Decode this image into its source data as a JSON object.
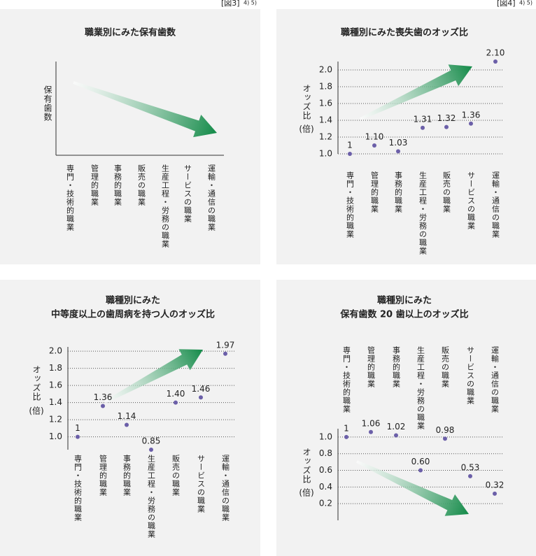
{
  "captions": [
    {
      "label": "[図3]",
      "ref": "4) 5)"
    },
    {
      "label": "[図4]",
      "ref": "4) 5)"
    }
  ],
  "chart_data": [
    {
      "type": "arrow",
      "title": [
        "職業別にみた保有歯数"
      ],
      "ylabel": "保有歯数",
      "categories": [
        "専門・技術的職業",
        "管理的職業",
        "事務的職業",
        "販売の職業",
        "生産工程・労務の職業",
        "サービスの職業",
        "運輸・通信の職業"
      ]
    },
    {
      "type": "scatter",
      "title": [
        "職種別にみた喪失歯のオッズ比"
      ],
      "ylabel": "オッズ比",
      "ylabel_unit": "(倍)",
      "categories": [
        "専門・技術的職業",
        "管理的職業",
        "事務的職業",
        "生産工程・労務の職業",
        "販売の職業",
        "サービスの職業",
        "運輸・通信の職業"
      ],
      "values": [
        1,
        1.1,
        1.03,
        1.31,
        1.32,
        1.36,
        2.1
      ],
      "value_labels": [
        "1",
        "1.10",
        "1.03",
        "1.31",
        "1.32",
        "1.36",
        "2.10"
      ],
      "color": "#6b5fa8",
      "ylim": [
        1.0,
        2.1
      ],
      "yticks": [
        {
          "value": 1.0,
          "label": "1.0"
        },
        1.2,
        1.4,
        1.6,
        1.8,
        {
          "value": 2.0,
          "label": "2.0"
        }
      ],
      "grid": true,
      "trend": "up"
    },
    {
      "type": "scatter",
      "title": [
        "職種別にみた",
        "中等度以上の歯周病を持つ人のオッズ比"
      ],
      "ylabel": "オッズ比",
      "ylabel_unit": "(倍)",
      "categories": [
        "専門・技術的職業",
        "管理的職業",
        "事務的職業",
        "生産工程・労務の職業",
        "販売の職業",
        "サービスの職業",
        "運輸・通信の職業"
      ],
      "values": [
        1,
        1.36,
        1.14,
        0.85,
        1.4,
        1.46,
        1.97
      ],
      "value_labels": [
        "1",
        "1.36",
        "1.14",
        "0.85",
        "1.40",
        "1.46",
        "1.97"
      ],
      "color": "#6b5fa8",
      "ylim": [
        0.85,
        2.05
      ],
      "yticks": [
        {
          "value": 1.0,
          "label": "1.0"
        },
        1.2,
        1.4,
        1.6,
        1.8,
        {
          "value": 2.0,
          "label": "2.0"
        }
      ],
      "grid": true,
      "trend": "up"
    },
    {
      "type": "scatter",
      "title": [
        "職種別にみた",
        "保有歯数 20 歯以上のオッズ比"
      ],
      "ylabel": "オッズ比",
      "ylabel_unit": "(倍)",
      "categories": [
        "専門・技術的職業",
        "管理的職業",
        "事務的職業",
        "生産工程・労務の職業",
        "販売の職業",
        "サービスの職業",
        "運輸・通信の職業"
      ],
      "values": [
        1,
        1.06,
        1.02,
        0.6,
        0.98,
        0.53,
        0.32
      ],
      "value_labels": [
        "1",
        "1.06",
        "1.02",
        "0.60",
        "0.98",
        "0.53",
        "0.32"
      ],
      "color": "#6b5fa8",
      "ylim": [
        0,
        1.1
      ],
      "yticks": [
        0.2,
        0.4,
        0.6,
        0.8,
        {
          "value": 1.0,
          "label": "1.0"
        }
      ],
      "grid": true,
      "trend": "down",
      "category_position": "top"
    }
  ]
}
